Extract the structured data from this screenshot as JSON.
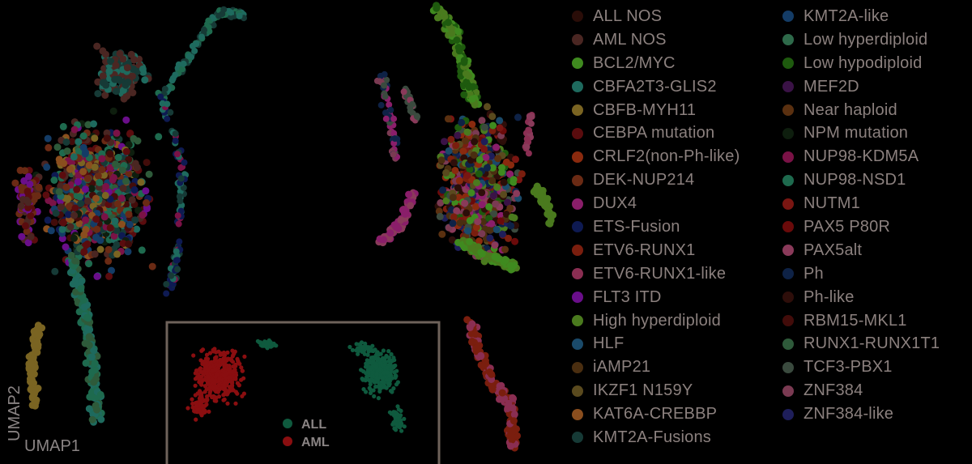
{
  "chart_data": {
    "type": "scatter",
    "xlabel": "UMAP1",
    "ylabel": "UMAP2",
    "legend_placement": "right",
    "subtypes": [
      {
        "name": "ALL NOS",
        "color": "#2a0d08"
      },
      {
        "name": "AML NOS",
        "color": "#4a2622"
      },
      {
        "name": "BCL2/MYC",
        "color": "#3f8a1f"
      },
      {
        "name": "CBFA2T3-GLIS2",
        "color": "#1e6a5e"
      },
      {
        "name": "CBFB-MYH11",
        "color": "#7a6422"
      },
      {
        "name": "CEBPA mutation",
        "color": "#5a0c0e"
      },
      {
        "name": "CRLF2(non-Ph-like)",
        "color": "#8a2a0e"
      },
      {
        "name": "DEK-NUP214",
        "color": "#6a2a14"
      },
      {
        "name": "DUX4",
        "color": "#8a1e6a"
      },
      {
        "name": "ETS-Fusion",
        "color": "#0e1a52"
      },
      {
        "name": "ETV6-RUNX1",
        "color": "#7a1e0e"
      },
      {
        "name": "ETV6-RUNX1-like",
        "color": "#8a2e52"
      },
      {
        "name": "FLT3 ITD",
        "color": "#6a0e8a"
      },
      {
        "name": "High hyperdiploid",
        "color": "#4a7a1e"
      },
      {
        "name": "HLF",
        "color": "#1a4a6a"
      },
      {
        "name": "iAMP21",
        "color": "#4a2e10"
      },
      {
        "name": "IKZF1 N159Y",
        "color": "#5a4a1e"
      },
      {
        "name": "KAT6A-CREBBP",
        "color": "#8a4e1e"
      },
      {
        "name": "KMT2A-Fusions",
        "color": "#163a36"
      },
      {
        "name": "KMT2A-like",
        "color": "#143c66"
      },
      {
        "name": "Low hyperdiploid",
        "color": "#2e6a4a"
      },
      {
        "name": "Low hypodiploid",
        "color": "#1e5a0e"
      },
      {
        "name": "MEF2D",
        "color": "#3a1246"
      },
      {
        "name": "Near haploid",
        "color": "#5a3010"
      },
      {
        "name": "NPM mutation",
        "color": "#0e1e0e"
      },
      {
        "name": "NUP98-KDM5A",
        "color": "#7a1246"
      },
      {
        "name": "NUP98-NSD1",
        "color": "#1e6a4e"
      },
      {
        "name": "NUTM1",
        "color": "#7a1612"
      },
      {
        "name": "PAX5 P80R",
        "color": "#6a0a0a"
      },
      {
        "name": "PAX5alt",
        "color": "#8a3a5a"
      },
      {
        "name": "Ph",
        "color": "#0e2246"
      },
      {
        "name": "Ph-like",
        "color": "#2e0e0a"
      },
      {
        "name": "RBM15-MKL1",
        "color": "#420c0a"
      },
      {
        "name": "RUNX1-RUNX1T1",
        "color": "#2e5a3a"
      },
      {
        "name": "TCF3-PBX1",
        "color": "#3a4a3e"
      },
      {
        "name": "ZNF384",
        "color": "#7a3a52"
      },
      {
        "name": "ZNF384-like",
        "color": "#1e1e5a"
      }
    ],
    "inset": {
      "type": "scatter",
      "series": [
        {
          "name": "ALL",
          "color": "#0f5a3e"
        },
        {
          "name": "AML",
          "color": "#8a0e10"
        }
      ]
    }
  }
}
